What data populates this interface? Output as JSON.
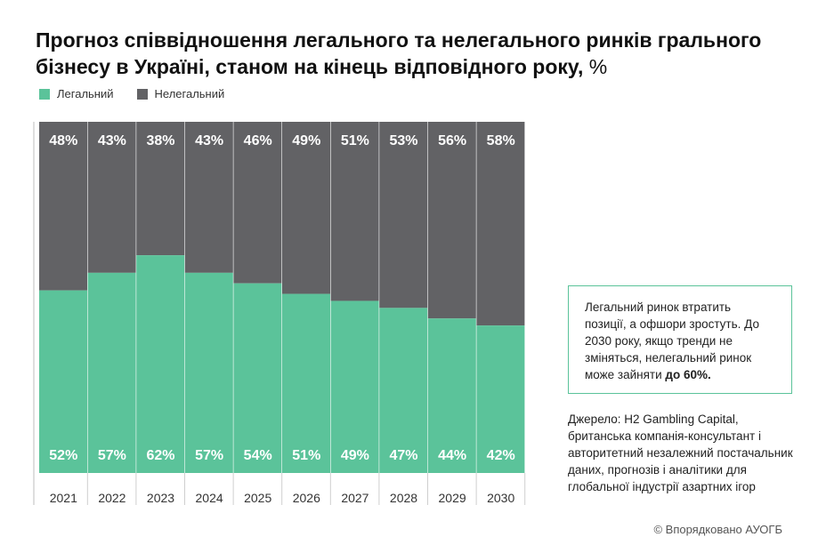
{
  "title": "Прогноз співвідношення легального та нелегального ринків грального бізнесу в Україні, станом на кінець відповідного року,",
  "title_unit": "%",
  "legend": [
    {
      "label": "Легальний",
      "color": "#5bc39a"
    },
    {
      "label": "Нелегальний",
      "color": "#626265"
    }
  ],
  "chart_data": {
    "type": "bar",
    "stacked": true,
    "percent": true,
    "title": "Прогноз співвідношення легального та нелегального ринків грального бізнесу в Україні, станом на кінець відповідного року, %",
    "categories": [
      "2021",
      "2022",
      "2023",
      "2024",
      "2025",
      "2026",
      "2027",
      "2028",
      "2029",
      "2030"
    ],
    "series": [
      {
        "name": "Легальний",
        "color": "#5bc39a",
        "values": [
          52,
          57,
          62,
          57,
          54,
          51,
          49,
          47,
          44,
          42
        ]
      },
      {
        "name": "Нелегальний",
        "color": "#626265",
        "values": [
          48,
          43,
          38,
          43,
          46,
          49,
          51,
          53,
          56,
          58
        ]
      }
    ],
    "value_suffix": "%",
    "ylim": [
      0,
      100
    ],
    "xlabel": "",
    "ylabel": "",
    "legend_position": "top-left"
  },
  "callout": {
    "text": "Легальний ринок втратить позиції, а офшори зростуть. До 2030 року, якщо тренди не зміняться, нелегальний ринок може зайняти",
    "bold": "до 60%."
  },
  "source": "Джерело: H2 Gambling Capital, британська компанія-консультант і авторитетний незалежний постачальник даних, прогнозів і аналітики для глобальної індустрії азартних ігор",
  "footer": "© Впорядковано АУОГБ"
}
